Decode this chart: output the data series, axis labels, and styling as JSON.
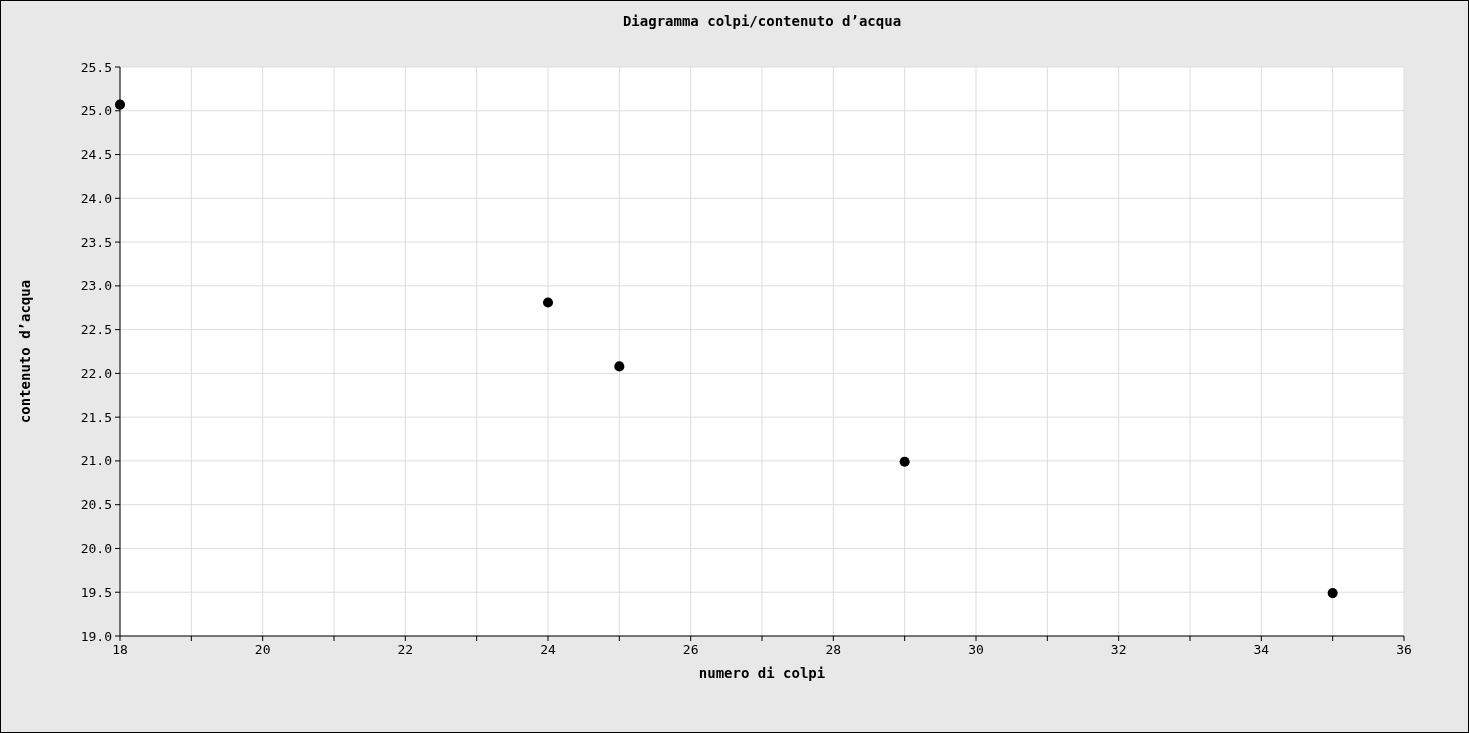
{
  "chart_data": {
    "type": "scatter",
    "title": "Diagramma  colpi/contenuto d’acqua",
    "xlabel": "numero di colpi",
    "ylabel": "contenuto d’acqua",
    "x": [
      18,
      24,
      25,
      29,
      35
    ],
    "series": [
      {
        "color": "#000000",
        "values": [
          25.07,
          22.81,
          22.08,
          20.99,
          19.49
        ]
      }
    ],
    "xlim": [
      18,
      36
    ],
    "xticks": [
      18,
      {
        "value": 19,
        "label": null
      },
      20,
      {
        "value": 21,
        "label": null
      },
      22,
      {
        "value": 23,
        "label": null
      },
      24,
      {
        "value": 25,
        "label": null
      },
      26,
      {
        "value": 27,
        "label": null
      },
      28,
      {
        "value": 29,
        "label": null
      },
      30,
      {
        "value": 31,
        "label": null
      },
      32,
      {
        "value": 33,
        "label": null
      },
      34,
      {
        "value": 35,
        "label": null
      },
      36
    ],
    "ylim": [
      19,
      25.5
    ],
    "yticks": [
      {
        "value": 19,
        "label": "19.0"
      },
      {
        "value": 19.5,
        "label": "19.5"
      },
      {
        "value": 20,
        "label": "20.0"
      },
      {
        "value": 20.5,
        "label": "20.5"
      },
      {
        "value": 21,
        "label": "21.0"
      },
      {
        "value": 21.5,
        "label": "21.5"
      },
      {
        "value": 22,
        "label": "22.0"
      },
      {
        "value": 22.5,
        "label": "22.5"
      },
      {
        "value": 23,
        "label": "23.0"
      },
      {
        "value": 23.5,
        "label": "23.5"
      },
      {
        "value": 24,
        "label": "24.0"
      },
      {
        "value": 24.5,
        "label": "24.5"
      },
      {
        "value": 25,
        "label": "25.0"
      },
      {
        "value": 25.5,
        "label": "25.5"
      }
    ],
    "grid": true,
    "marker": "circle"
  }
}
